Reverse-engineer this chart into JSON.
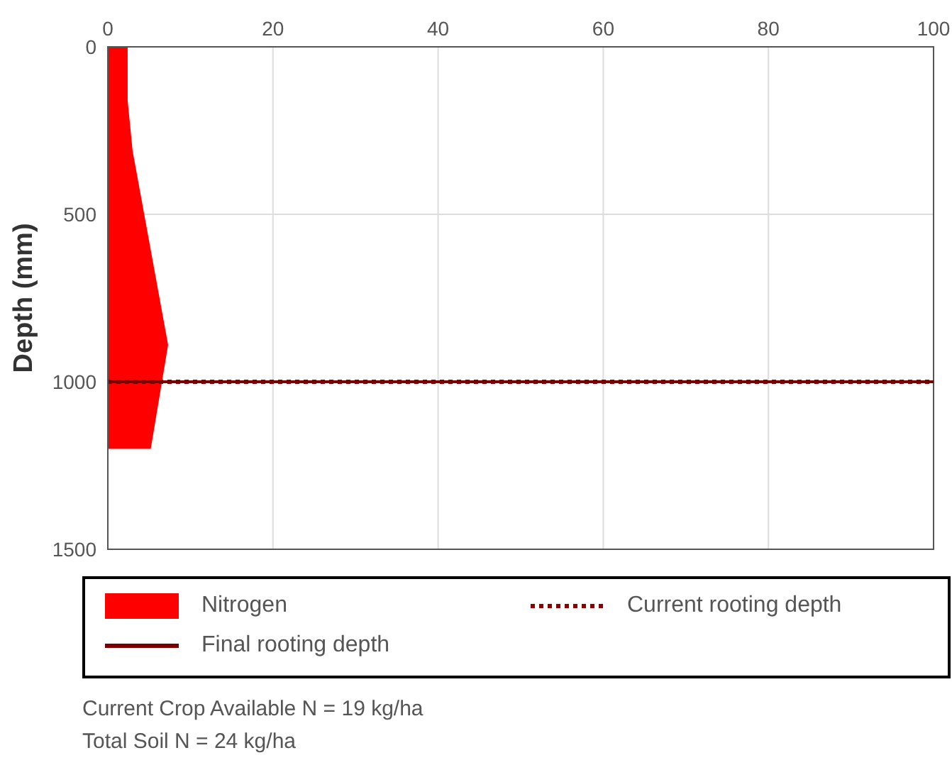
{
  "chart_data": {
    "type": "area",
    "orientation": "horizontal",
    "ylabel": "Depth (mm)",
    "series": [
      {
        "name": "Nitrogen",
        "color": "#ff0000",
        "x": [
          0,
          160,
          310,
          890,
          1200
        ],
        "values": [
          2.4,
          2.4,
          3,
          7.3,
          5.2
        ]
      }
    ],
    "xlim": [
      0,
      100
    ],
    "xticks": [
      0,
      20,
      40,
      60,
      80,
      100
    ],
    "ylim": [
      1500,
      0
    ],
    "yticks": [
      0,
      500,
      1000,
      1500
    ],
    "ref_lines": [
      {
        "axis": "y",
        "value": 1000,
        "label": "Current rooting depth",
        "color": "#8b0000",
        "line_style": "dotted"
      },
      {
        "axis": "y",
        "value": 1000,
        "label": "Final rooting depth",
        "color": "#7a0000",
        "line_style": "solid"
      }
    ],
    "grid": true,
    "legend": "bottom",
    "annotations": [
      "Current Crop Available N = 19 kg/ha",
      "Total Soil N = 24 kg/ha"
    ]
  }
}
